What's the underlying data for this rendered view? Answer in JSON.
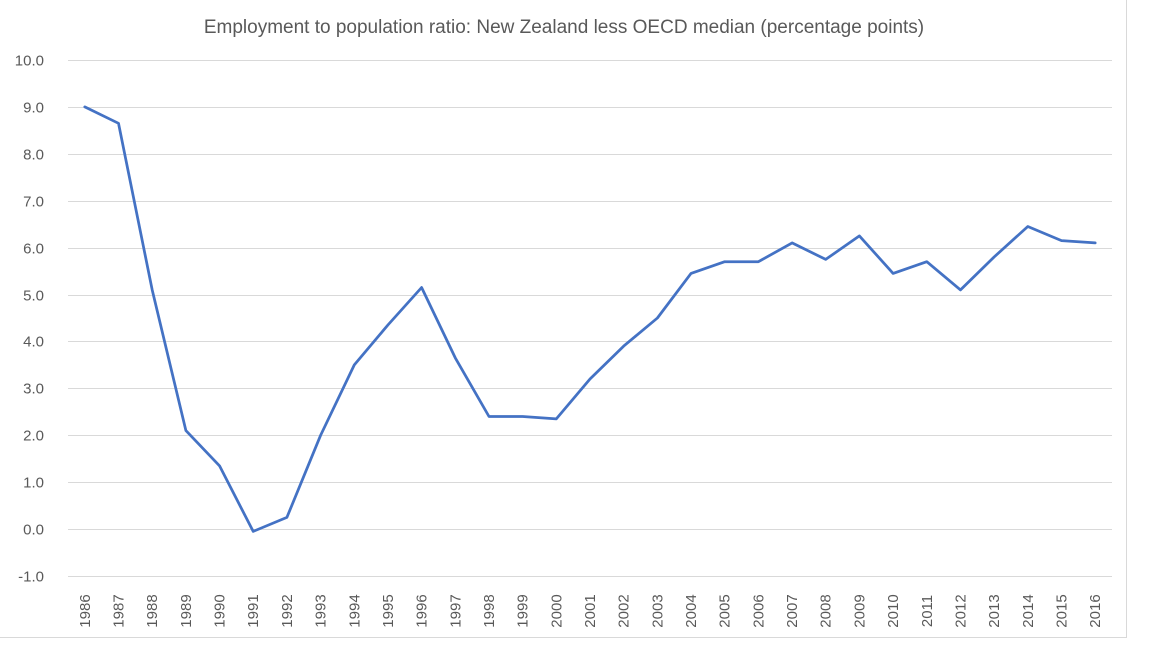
{
  "chart_data": {
    "type": "line",
    "title": "Employment to population ratio: New Zealand less OECD median (percentage points)",
    "xlabel": "",
    "ylabel": "",
    "ylim": [
      -1.0,
      10.0
    ],
    "y_ticks": [
      "10.0",
      "9.0",
      "8.0",
      "7.0",
      "6.0",
      "5.0",
      "4.0",
      "3.0",
      "2.0",
      "1.0",
      "0.0",
      "-1.0"
    ],
    "y_tick_values": [
      10,
      9,
      8,
      7,
      6,
      5,
      4,
      3,
      2,
      1,
      0,
      -1
    ],
    "grid": true,
    "legend": "none",
    "categories": [
      "1986",
      "1987",
      "1988",
      "1989",
      "1990",
      "1991",
      "1992",
      "1993",
      "1994",
      "1995",
      "1996",
      "1997",
      "1998",
      "1999",
      "2000",
      "2001",
      "2002",
      "2003",
      "2004",
      "2005",
      "2006",
      "2007",
      "2008",
      "2009",
      "2010",
      "2011",
      "2012",
      "2013",
      "2014",
      "2015",
      "2016"
    ],
    "series": [
      {
        "color": "#4472c4",
        "values": [
          9.0,
          8.65,
          5.1,
          2.1,
          1.35,
          -0.05,
          0.25,
          2.0,
          3.5,
          4.35,
          5.15,
          3.65,
          2.4,
          2.4,
          2.35,
          3.2,
          3.9,
          4.5,
          5.45,
          5.7,
          5.7,
          6.1,
          5.75,
          6.25,
          5.45,
          5.7,
          5.1,
          5.8,
          6.45,
          6.15,
          6.1
        ]
      }
    ]
  }
}
